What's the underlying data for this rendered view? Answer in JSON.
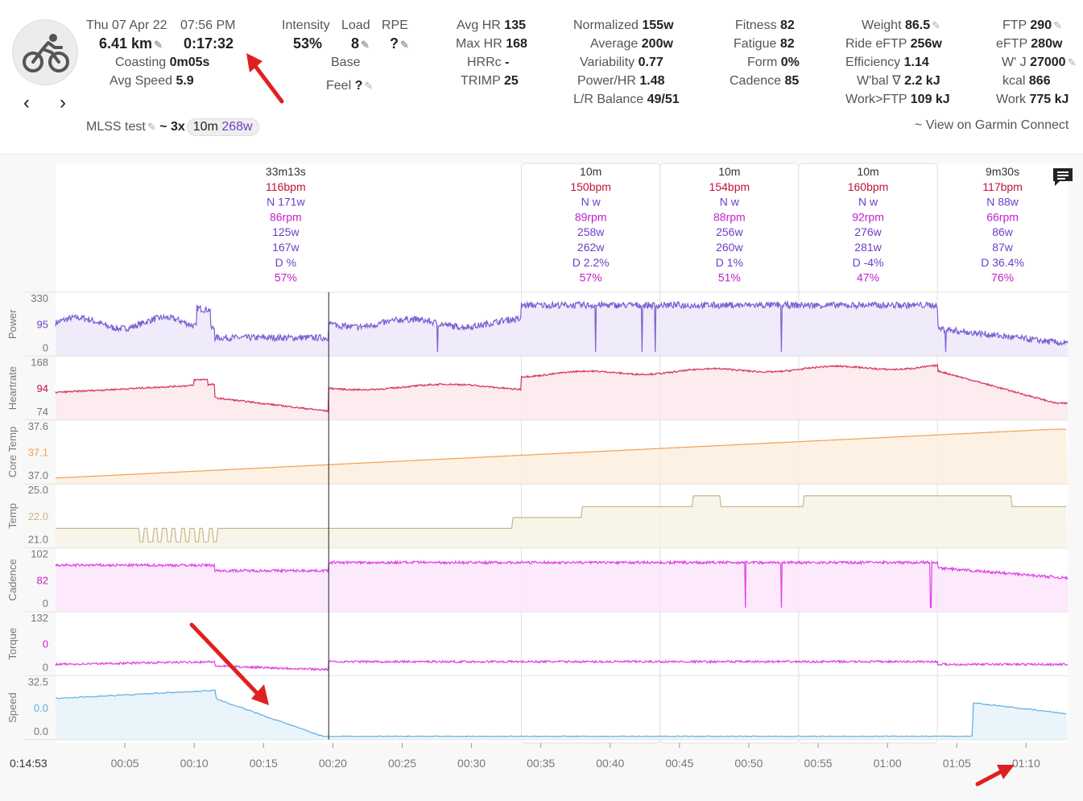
{
  "header": {
    "date": "Thu 07 Apr 22",
    "time": "07:56 PM",
    "distance": "6.41 km",
    "duration": "0:17:32",
    "coasting_label": "Coasting",
    "coasting_value": "0m05s",
    "avg_speed_label": "Avg Speed",
    "avg_speed_value": "5.9",
    "intensity_label": "Intensity",
    "intensity_value": "53%",
    "load_label": "Load",
    "load_value": "8",
    "rpe_label": "RPE",
    "rpe_value": "?",
    "base_label": "Base",
    "feel_label": "Feel",
    "feel_value": "?",
    "avg_hr_label": "Avg HR",
    "avg_hr_value": "135",
    "max_hr_label": "Max HR",
    "max_hr_value": "168",
    "hrrc_label": "HRRc",
    "hrrc_value": "-",
    "trimp_label": "TRIMP",
    "trimp_value": "25",
    "normalized_label": "Normalized",
    "normalized_value": "155w",
    "average_label": "Average",
    "average_value": "200w",
    "variability_label": "Variability",
    "variability_value": "0.77",
    "power_hr_label": "Power/HR",
    "power_hr_value": "1.48",
    "lr_balance_label": "L/R Balance",
    "lr_balance_value": "49/51",
    "fitness_label": "Fitness",
    "fitness_value": "82",
    "fatigue_label": "Fatigue",
    "fatigue_value": "82",
    "form_label": "Form",
    "form_value": "0%",
    "cadence_label": "Cadence",
    "cadence_value": "85",
    "weight_label": "Weight",
    "weight_value": "86.5",
    "ride_eftp_label": "Ride eFTP",
    "ride_eftp_value": "256w",
    "efficiency_label": "Efficiency",
    "efficiency_value": "1.14",
    "wbal_label": "W'bal ∇",
    "wbal_value": "2.2 kJ",
    "work_ftp_label": "Work>FTP",
    "work_ftp_value": "109 kJ",
    "ftp_label": "FTP",
    "ftp_value": "290",
    "eftp_label": "eFTP",
    "eftp_value": "280w",
    "wj_label": "W' J",
    "wj_value": "27000",
    "kcal_label": "kcal",
    "kcal_value": "866",
    "work_label": "Work",
    "work_value": "775 kJ",
    "mlss_label": "MLSS test",
    "mlss_prefix": "~",
    "mlss_reps": "3x",
    "mlss_duration": "10m",
    "mlss_watts": "268w",
    "garmin_link": "~ View on Garmin Connect"
  },
  "colors": {
    "power": "#7a5fd0",
    "heartrate": "#d6345b",
    "core_temp": "#f0a050",
    "temp": "#c7b784",
    "cadence": "#e040e8",
    "torque": "#e040e8",
    "speed": "#5aafe0",
    "interval_purple": "#6b3fc9",
    "interval_red": "#c0143c",
    "interval_magenta": "#c020c8",
    "arrow": "#e02020"
  },
  "intervals": [
    {
      "duration": "33m13s",
      "hr": "116bpm",
      "np": "N 171w",
      "cadence": "86rpm",
      "avg_power": "125w",
      "power": "167w",
      "decoupling": "D %",
      "intensity": "57%",
      "x_start_min": 0,
      "x_end_min": 33.2
    },
    {
      "duration": "10m",
      "hr": "150bpm",
      "np": "N w",
      "cadence": "89rpm",
      "avg_power": "258w",
      "power": "262w",
      "decoupling": "D 2.2%",
      "intensity": "57%",
      "x_start_min": 33.6,
      "x_end_min": 43.6
    },
    {
      "duration": "10m",
      "hr": "154bpm",
      "np": "N w",
      "cadence": "88rpm",
      "avg_power": "256w",
      "power": "260w",
      "decoupling": "D 1%",
      "intensity": "51%",
      "x_start_min": 43.6,
      "x_end_min": 53.6
    },
    {
      "duration": "10m",
      "hr": "160bpm",
      "np": "N w",
      "cadence": "92rpm",
      "avg_power": "276w",
      "power": "281w",
      "decoupling": "D -4%",
      "intensity": "47%",
      "x_start_min": 53.6,
      "x_end_min": 63.6
    },
    {
      "duration": "9m30s",
      "hr": "117bpm",
      "np": "N 88w",
      "cadence": "66rpm",
      "avg_power": "86w",
      "power": "87w",
      "decoupling": "D 36.4%",
      "intensity": "76%",
      "x_start_min": 63.6,
      "x_end_min": 73
    }
  ],
  "panels": [
    {
      "name": "Power",
      "ticks": [
        "330",
        "95",
        "0"
      ],
      "highlight_index": 1
    },
    {
      "name": "Heartrate",
      "ticks": [
        "168",
        "94",
        "74"
      ],
      "highlight_index": 1
    },
    {
      "name": "Core Temp",
      "ticks": [
        "37.6",
        "37.1",
        "37.0"
      ],
      "highlight_index": 1
    },
    {
      "name": "Temp",
      "ticks": [
        "25.0",
        "22.0",
        "21.0"
      ],
      "highlight_index": 1
    },
    {
      "name": "Cadence",
      "ticks": [
        "102",
        "82",
        "0"
      ],
      "highlight_index": 1
    },
    {
      "name": "Torque",
      "ticks": [
        "132",
        "0",
        "0"
      ],
      "highlight_index": 1
    },
    {
      "name": "Speed",
      "ticks": [
        "32.5",
        "0.0",
        "0.0"
      ],
      "highlight_index": 1
    }
  ],
  "x_axis": {
    "cursor_time": "0:14:53",
    "ticks": [
      "00:05",
      "00:10",
      "00:15",
      "00:20",
      "00:25",
      "00:30",
      "00:35",
      "00:40",
      "00:45",
      "00:50",
      "00:55",
      "01:00",
      "01:05",
      "01:10"
    ],
    "domain_min": [
      0,
      73
    ]
  }
}
